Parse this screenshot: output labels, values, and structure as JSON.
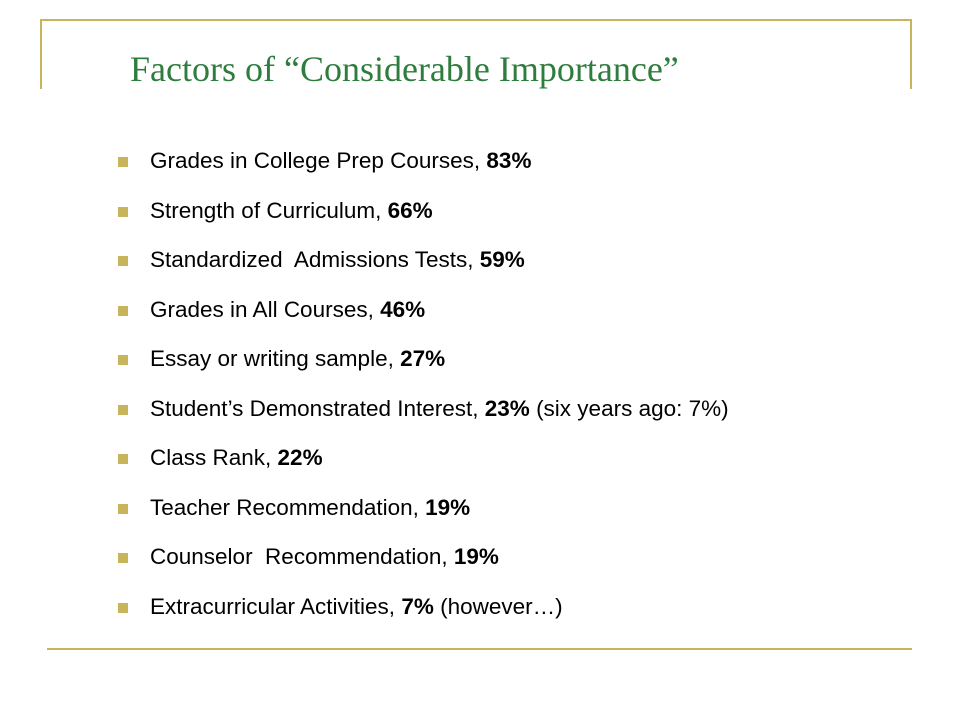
{
  "slide": {
    "title": "Factors of “Considerable Importance”",
    "accent_color": "#c8b45a",
    "title_color": "#2f7d3e",
    "bullet_icon": "square-bullet",
    "items": [
      {
        "label": "Grades in College Prep Courses, ",
        "pct": "83%",
        "suffix": ""
      },
      {
        "label": "Strength of Curriculum, ",
        "pct": "66%",
        "suffix": ""
      },
      {
        "label": "Standardized  Admissions Tests, ",
        "pct": "59%",
        "suffix": ""
      },
      {
        "label": "Grades in All Courses, ",
        "pct": "46%",
        "suffix": ""
      },
      {
        "label": "Essay or writing sample, ",
        "pct": "27%",
        "suffix": ""
      },
      {
        "label": "Student’s Demonstrated Interest, ",
        "pct": "23%",
        "suffix": " (six years ago: 7%)"
      },
      {
        "label": "Class Rank, ",
        "pct": "22%",
        "suffix": ""
      },
      {
        "label": "Teacher Recommendation, ",
        "pct": "19%",
        "suffix": ""
      },
      {
        "label": "Counselor  Recommendation, ",
        "pct": "19%",
        "suffix": ""
      },
      {
        "label": "Extracurricular Activities, ",
        "pct": "7%",
        "suffix": " (however…)"
      }
    ]
  }
}
